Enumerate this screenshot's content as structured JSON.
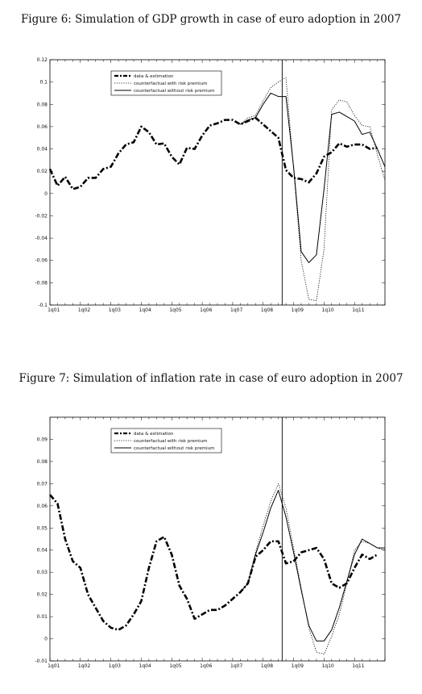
{
  "captions": {
    "fig6": "Figure 6: Simulation of GDP growth in case of euro adoption in 2007",
    "fig7": "Figure 7: Simulation of inflation rate in case of euro adoption in 2007"
  },
  "chart_data": [
    {
      "type": "line",
      "title": "Figure 6: Simulation of GDP growth in case of euro adoption in 2007",
      "xlabel": "",
      "ylabel": "",
      "x_tick_labels": [
        "1q01",
        "1q02",
        "1q03",
        "1q04",
        "1q05",
        "1q06",
        "1q07",
        "1q08",
        "1q09",
        "1q10",
        "1q11"
      ],
      "ylim": [
        -0.1,
        0.12
      ],
      "yticks": [
        -0.1,
        -0.08,
        -0.06,
        -0.04,
        -0.02,
        0,
        0.02,
        0.04,
        0.06,
        0.08,
        0.1,
        0.12
      ],
      "ytick_labels": [
        "-0.1",
        "-0.08",
        "-0.06",
        "-0.04",
        "-0.02",
        "0",
        "0.02",
        "0.04",
        "0.06",
        "0.08",
        "0.1",
        "0.12"
      ],
      "xlim": [
        0,
        44
      ],
      "vertical_line_x": 30.5,
      "grid": false,
      "legend_position": "top-left",
      "series": [
        {
          "name": "data & estimation",
          "style": "dashdot-thick",
          "x": [
            0,
            1,
            2,
            3,
            4,
            5,
            6,
            7,
            8,
            9,
            10,
            11,
            12,
            13,
            14,
            15,
            16,
            17,
            18,
            19,
            20,
            21,
            22,
            23,
            24,
            25,
            26,
            27,
            28,
            29,
            30,
            31,
            32,
            33,
            34,
            35,
            36,
            37,
            38,
            39,
            40,
            41,
            42,
            43
          ],
          "y": [
            0.022,
            0.007,
            0.015,
            0.004,
            0.006,
            0.014,
            0.014,
            0.022,
            0.024,
            0.036,
            0.044,
            0.046,
            0.06,
            0.055,
            0.044,
            0.045,
            0.033,
            0.026,
            0.041,
            0.04,
            0.052,
            0.061,
            0.063,
            0.066,
            0.066,
            0.062,
            0.065,
            0.068,
            0.062,
            0.056,
            0.05,
            0.021,
            0.014,
            0.013,
            0.01,
            0.018,
            0.033,
            0.037,
            0.045,
            0.042,
            0.044,
            0.044,
            0.04,
            0.041
          ]
        },
        {
          "name": "counterfactual with risk premium",
          "style": "dotted",
          "x": [
            25,
            26,
            27,
            28,
            29,
            30,
            31,
            32,
            33,
            34,
            35,
            36,
            37,
            38,
            39,
            40,
            41,
            42,
            43,
            44
          ],
          "y": [
            0.062,
            0.068,
            0.07,
            0.083,
            0.095,
            0.1,
            0.104,
            0.022,
            -0.06,
            -0.095,
            -0.096,
            -0.05,
            0.075,
            0.084,
            0.082,
            0.07,
            0.061,
            0.06,
            0.035,
            0.012
          ]
        },
        {
          "name": "counterfactual without risk premium",
          "style": "solid",
          "x": [
            25,
            26,
            27,
            28,
            29,
            30,
            31,
            32,
            33,
            34,
            35,
            36,
            37,
            38,
            39,
            40,
            41,
            42,
            43,
            44
          ],
          "y": [
            0.062,
            0.066,
            0.068,
            0.08,
            0.09,
            0.087,
            0.087,
            0.024,
            -0.052,
            -0.062,
            -0.055,
            0.004,
            0.071,
            0.073,
            0.069,
            0.065,
            0.053,
            0.055,
            0.04,
            0.024
          ]
        }
      ]
    },
    {
      "type": "line",
      "title": "Figure 7: Simulation of inflation rate in case of euro adoption in 2007",
      "xlabel": "",
      "ylabel": "",
      "x_tick_labels": [
        "1q01",
        "1q02",
        "1q03",
        "1q04",
        "1q05",
        "1q06",
        "1q07",
        "1q08",
        "1q09",
        "1q10",
        "1q11"
      ],
      "ylim": [
        -0.01,
        0.1
      ],
      "yticks": [
        -0.01,
        0,
        0.01,
        0.02,
        0.03,
        0.04,
        0.05,
        0.06,
        0.07,
        0.08,
        0.09
      ],
      "ytick_labels": [
        "-0.01",
        "0",
        "0.01",
        "0.02",
        "0.03",
        "0.04",
        "0.05",
        "0.06",
        "0.07",
        "0.08",
        "0.09"
      ],
      "xlim": [
        0,
        44
      ],
      "vertical_line_x": 30.5,
      "grid": false,
      "legend_position": "top-center",
      "series": [
        {
          "name": "data & estimation",
          "style": "dashdot-thick",
          "x": [
            0,
            1,
            2,
            3,
            4,
            5,
            6,
            7,
            8,
            9,
            10,
            11,
            12,
            13,
            14,
            15,
            16,
            17,
            18,
            19,
            20,
            21,
            22,
            23,
            24,
            25,
            26,
            27,
            28,
            29,
            30,
            31,
            32,
            33,
            34,
            35,
            36,
            37,
            38,
            39,
            40,
            41,
            42,
            43
          ],
          "y": [
            0.065,
            0.061,
            0.045,
            0.035,
            0.032,
            0.02,
            0.014,
            0.008,
            0.005,
            0.004,
            0.006,
            0.011,
            0.017,
            0.032,
            0.044,
            0.046,
            0.038,
            0.024,
            0.018,
            0.009,
            0.011,
            0.013,
            0.013,
            0.015,
            0.018,
            0.021,
            0.025,
            0.037,
            0.04,
            0.044,
            0.044,
            0.034,
            0.035,
            0.039,
            0.04,
            0.041,
            0.036,
            0.025,
            0.023,
            0.025,
            0.032,
            0.038,
            0.036,
            0.038
          ]
        },
        {
          "name": "counterfactual with risk premium",
          "style": "dotted",
          "x": [
            25,
            26,
            27,
            28,
            29,
            30,
            31,
            32,
            33,
            34,
            35,
            36,
            37,
            38,
            39,
            40,
            41,
            42,
            43,
            44
          ],
          "y": [
            0.021,
            0.025,
            0.039,
            0.051,
            0.062,
            0.07,
            0.059,
            0.041,
            0.023,
            0.005,
            -0.006,
            -0.007,
            0.001,
            0.011,
            0.025,
            0.04,
            0.044,
            0.043,
            0.041,
            0.04
          ]
        },
        {
          "name": "counterfactual without risk premium",
          "style": "solid",
          "x": [
            25,
            26,
            27,
            28,
            29,
            30,
            31,
            32,
            33,
            34,
            35,
            36,
            37,
            38,
            39,
            40,
            41,
            42,
            43,
            44
          ],
          "y": [
            0.021,
            0.025,
            0.038,
            0.048,
            0.059,
            0.067,
            0.055,
            0.039,
            0.022,
            0.006,
            -0.001,
            -0.001,
            0.004,
            0.014,
            0.026,
            0.038,
            0.045,
            0.043,
            0.041,
            0.041
          ]
        }
      ]
    }
  ]
}
